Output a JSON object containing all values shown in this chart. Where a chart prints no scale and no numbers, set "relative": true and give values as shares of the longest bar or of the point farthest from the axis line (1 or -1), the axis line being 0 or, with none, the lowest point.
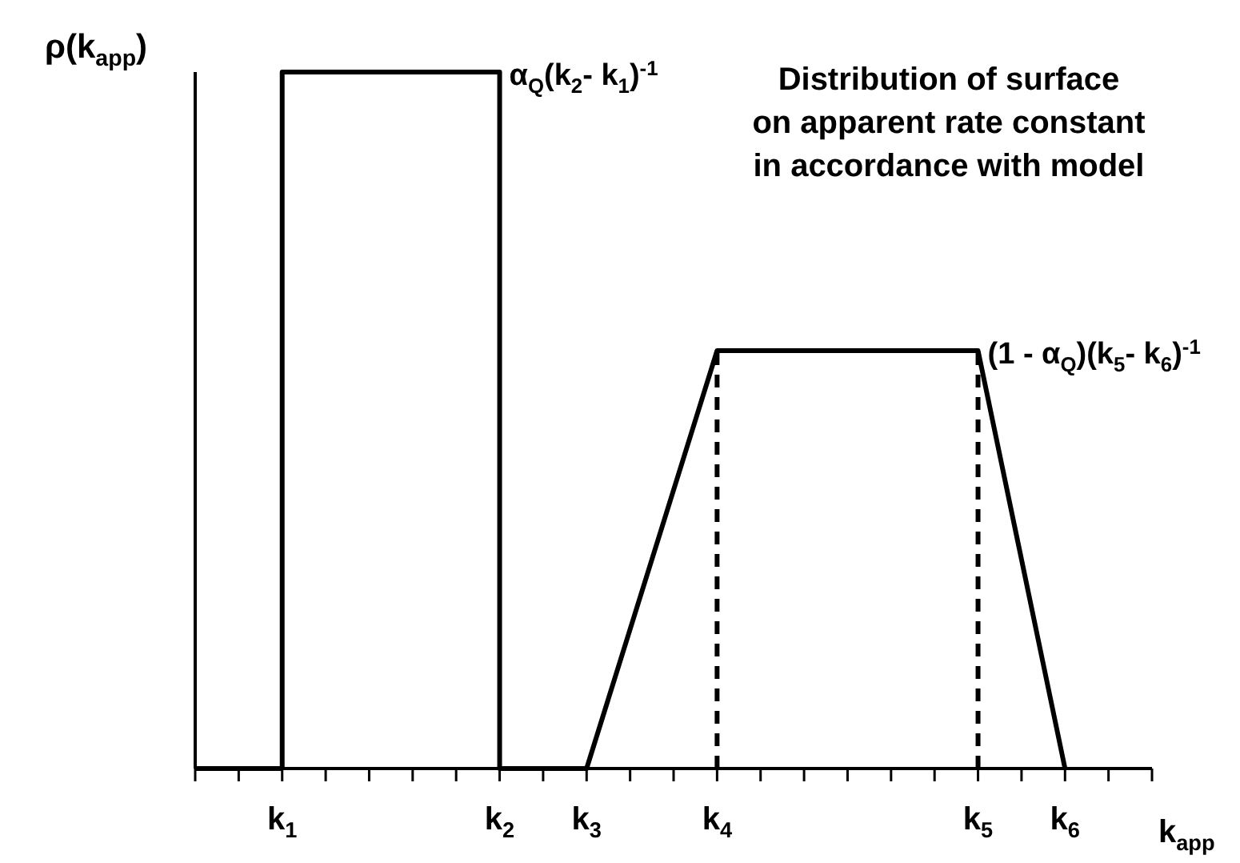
{
  "chart_data": {
    "type": "line",
    "title": "Distribution of surface on apparent rate constant in accordance with model",
    "xlabel": "k$_{app}$",
    "ylabel": "ρ(k$_{app}$)",
    "relative": true,
    "categories": [
      null,
      null,
      "k$_{1}$",
      null,
      null,
      null,
      null,
      "k$_{2}$",
      null,
      "k$_{3}$",
      null,
      null,
      "k$_{4}$",
      null,
      null,
      null,
      null,
      null,
      "k$_{5}$",
      null,
      "k$_{6}$",
      null,
      null
    ],
    "series": [
      {
        "color": "#000000",
        "values": [
          0,
          0,
          0,
          null,
          null,
          null,
          null,
          null,
          null,
          null,
          null,
          null,
          null,
          null,
          null,
          null,
          null,
          null,
          null,
          null,
          null,
          null,
          null
        ]
      },
      {
        "color": "#000000",
        "x": [
          "k$_{1}$",
          "k$_{1}$",
          "k$_{2}$",
          "k$_{2}$",
          "k$_{3}$",
          "k$_{4}$",
          "k$_{5}$",
          "k$_{6}$"
        ],
        "values": [
          0,
          1,
          1,
          0,
          0,
          0.6,
          0.6,
          0
        ]
      },
      {
        "color": "#000000",
        "line_style": "dashed",
        "x": [
          "k$_{4}$",
          "k$_{4}$"
        ],
        "values": [
          0,
          0.6
        ]
      },
      {
        "color": "#000000",
        "line_style": "dashed",
        "x": [
          "k$_{5}$",
          "k$_{5}$"
        ],
        "values": [
          0,
          0.6
        ]
      }
    ],
    "annotations": [
      {
        "text": "α$_{Q}$(k$_{2}$- k$_{1}$)$^{-1}$",
        "x": "k$_{2}$",
        "y": 1
      },
      {
        "text": "(1 - α$_{Q}$)(k$_{5}$- k$_{6}$)$^{-1}$",
        "x": "k$_{5}$",
        "y": 0.6
      }
    ],
    "marker": "none"
  }
}
